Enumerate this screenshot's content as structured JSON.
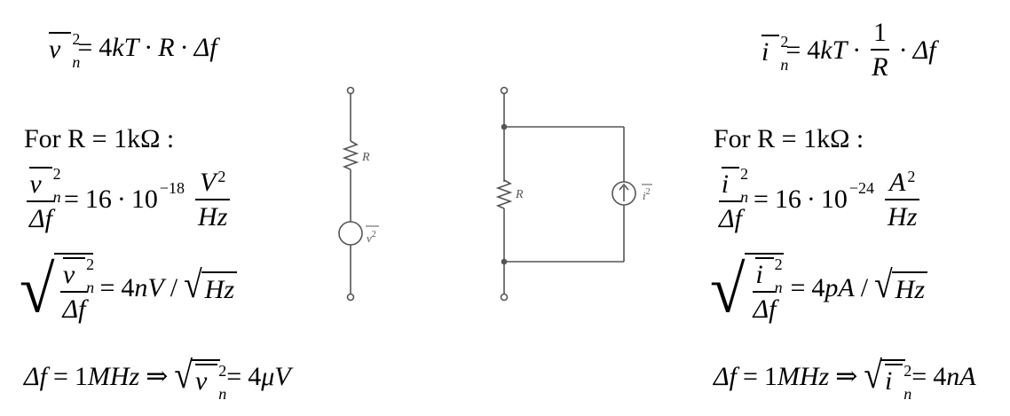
{
  "left": {
    "top_formula": {
      "lhs_sym": "v",
      "lhs_sup": "2",
      "lhs_sub": "n",
      "eq": "=",
      "coef": "4",
      "k": "k",
      "T": "T",
      "R": "R",
      "df": "Δf"
    },
    "label": "For R = 1kΩ :",
    "density": {
      "num_sym": "v",
      "sup": "2",
      "sub": "n",
      "den": "Δf",
      "value": "16",
      "ten": "10",
      "exp": "−18",
      "unit_num": "V",
      "unit_num_exp": "2",
      "unit_den": "Hz"
    },
    "root": {
      "num_sym": "v",
      "sup": "2",
      "sub": "n",
      "den": "Δf",
      "value": "4",
      "unit": "nV",
      "slash": "/",
      "hz": "Hz"
    },
    "bandwidth": {
      "df": "Δf",
      "value": "1",
      "unit": "MHz",
      "implies": "⇒",
      "sym": "v",
      "sup": "2",
      "sub": "n",
      "result": "4",
      "result_unit": "μV"
    }
  },
  "right": {
    "top_formula": {
      "lhs_sym": "i",
      "lhs_sup": "2",
      "lhs_sub": "n",
      "eq": "=",
      "coef": "4",
      "k": "k",
      "T": "T",
      "one": "1",
      "R": "R",
      "df": "Δf"
    },
    "label": "For R = 1kΩ :",
    "density": {
      "num_sym": "i",
      "sup": "2",
      "sub": "n",
      "den": "Δf",
      "value": "16",
      "ten": "10",
      "exp": "−24",
      "unit_num": "A",
      "unit_num_exp": "2",
      "unit_den": "Hz"
    },
    "root": {
      "num_sym": "i",
      "sup": "2",
      "sub": "n",
      "den": "Δf",
      "value": "4",
      "unit": "pA",
      "slash": "/",
      "hz": "Hz"
    },
    "bandwidth": {
      "df": "Δf",
      "value": "1",
      "unit": "MHz",
      "implies": "⇒",
      "sym": "i",
      "sup": "2",
      "sub": "n",
      "result": "4",
      "result_unit": "nA"
    }
  },
  "circuits": {
    "series": {
      "resistor_label": "R",
      "source_label": "v",
      "source_sup": "2"
    },
    "parallel": {
      "resistor_label": "R",
      "source_label": "i",
      "source_sup": "2"
    }
  },
  "colors": {
    "circuit": "#555555",
    "text": "#000000"
  }
}
